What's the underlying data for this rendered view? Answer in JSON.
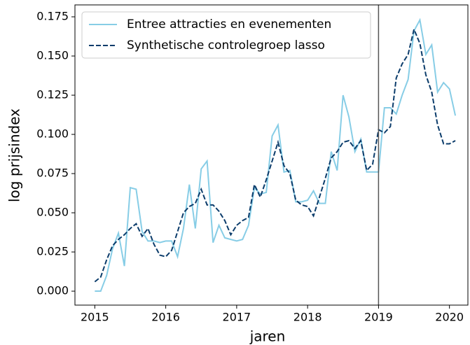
{
  "chart_data": {
    "type": "line",
    "xlabel": "jaren",
    "ylabel": "log prijsindex",
    "x": [
      2015,
      2015.083,
      2015.167,
      2015.25,
      2015.333,
      2015.417,
      2015.5,
      2015.583,
      2015.667,
      2015.75,
      2015.833,
      2015.917,
      2016,
      2016.083,
      2016.167,
      2016.25,
      2016.333,
      2016.417,
      2016.5,
      2016.583,
      2016.667,
      2016.75,
      2016.833,
      2016.917,
      2017,
      2017.083,
      2017.167,
      2017.25,
      2017.333,
      2017.417,
      2017.5,
      2017.583,
      2017.667,
      2017.75,
      2017.833,
      2017.917,
      2018,
      2018.083,
      2018.167,
      2018.25,
      2018.333,
      2018.417,
      2018.5,
      2018.583,
      2018.667,
      2018.75,
      2018.833,
      2018.917,
      2019,
      2019.083,
      2019.167,
      2019.25,
      2019.333,
      2019.417,
      2019.5,
      2019.583,
      2019.667,
      2019.75,
      2019.833,
      2019.917,
      2020,
      2020.083
    ],
    "series": [
      {
        "name": "Entree attracties en evenementen",
        "color": "#87cde6",
        "linestyle": "solid",
        "values": [
          0.0,
          0.0,
          0.01,
          0.027,
          0.037,
          0.016,
          0.066,
          0.065,
          0.038,
          0.032,
          0.032,
          0.031,
          0.032,
          0.032,
          0.022,
          0.04,
          0.068,
          0.04,
          0.078,
          0.083,
          0.031,
          0.042,
          0.034,
          0.033,
          0.032,
          0.033,
          0.042,
          0.066,
          0.062,
          0.063,
          0.099,
          0.106,
          0.076,
          0.077,
          0.057,
          0.057,
          0.058,
          0.064,
          0.056,
          0.056,
          0.089,
          0.077,
          0.125,
          0.111,
          0.089,
          0.097,
          0.076,
          0.076,
          0.076,
          0.117,
          0.117,
          0.113,
          0.125,
          0.135,
          0.166,
          0.173,
          0.151,
          0.157,
          0.127,
          0.133,
          0.129,
          0.112
        ]
      },
      {
        "name": "Synthetische controlegroep lasso",
        "color": "#0b3c6b",
        "linestyle": "dashed",
        "values": [
          0.006,
          0.009,
          0.02,
          0.029,
          0.033,
          0.036,
          0.04,
          0.043,
          0.035,
          0.04,
          0.03,
          0.023,
          0.022,
          0.026,
          0.038,
          0.05,
          0.054,
          0.056,
          0.065,
          0.055,
          0.055,
          0.051,
          0.045,
          0.036,
          0.042,
          0.045,
          0.047,
          0.068,
          0.06,
          0.071,
          0.083,
          0.095,
          0.08,
          0.075,
          0.058,
          0.055,
          0.054,
          0.048,
          0.06,
          0.072,
          0.085,
          0.089,
          0.095,
          0.096,
          0.091,
          0.096,
          0.077,
          0.081,
          0.103,
          0.101,
          0.105,
          0.136,
          0.145,
          0.151,
          0.167,
          0.158,
          0.138,
          0.127,
          0.106,
          0.094,
          0.094,
          0.096
        ]
      }
    ],
    "xlim": [
      2014.72,
      2020.26
    ],
    "xticks": [
      2015,
      2016,
      2017,
      2018,
      2019,
      2020
    ],
    "ylim": [
      -0.0089,
      0.1826
    ],
    "yticks": [
      {
        "value": 0,
        "label": "0.000"
      },
      {
        "value": 0.025,
        "label": "0.025"
      },
      {
        "value": 0.05,
        "label": "0.050"
      },
      {
        "value": 0.075,
        "label": "0.075"
      },
      {
        "value": 0.1,
        "label": "0.100"
      },
      {
        "value": 0.125,
        "label": "0.125"
      },
      {
        "value": 0.15,
        "label": "0.150"
      },
      {
        "value": 0.175,
        "label": "0.175"
      }
    ],
    "vline": 2019,
    "vline_color": "#555555",
    "grid": false,
    "legend": "upper left"
  }
}
